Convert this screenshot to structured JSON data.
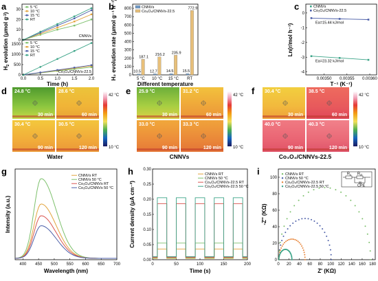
{
  "panels": {
    "a": {
      "label": "a",
      "xlabel": "Time (h)",
      "ylabel": "H",
      "ylabel_sub": "2",
      "ylabel_rest": " evolution (μmol g",
      "ylabel_sup": "-1",
      "ylabel_end": ")",
      "xticks": [
        "0.0",
        "0.5",
        "1.0",
        "1.5",
        "2.0"
      ],
      "top": {
        "name": "CNNVs",
        "yticks": [
          "0",
          "10",
          "20",
          "30"
        ],
        "ylim": [
          0,
          35
        ],
        "series": [
          {
            "name": "5 °C",
            "color": "#7cc06b",
            "x": [
              0,
              0.5,
              1.0,
              1.5,
              2.0
            ],
            "y": [
              0,
              5,
              10,
              14,
              20
            ]
          },
          {
            "name": "10 °C",
            "color": "#e2a33c",
            "x": [
              0,
              0.5,
              1.0,
              1.5,
              2.0
            ],
            "y": [
              0,
              6,
              12,
              18,
              25
            ]
          },
          {
            "name": "15 °C",
            "color": "#4b5ea8",
            "x": [
              0,
              0.5,
              1.0,
              1.5,
              2.0
            ],
            "y": [
              0,
              7,
              14,
              21,
              29
            ]
          },
          {
            "name": "RT",
            "color": "#3aa387",
            "x": [
              0,
              0.5,
              1.0,
              1.5,
              2.0
            ],
            "y": [
              0,
              8,
              15.5,
              23,
              31
            ]
          }
        ]
      },
      "bottom": {
        "name": "Co₃O₄/CNNVs-22.5",
        "yticks": [
          "0",
          "500",
          "1000",
          "1500"
        ],
        "ylim": [
          0,
          1700
        ],
        "series": [
          {
            "name": "5 °C",
            "color": "#7cc06b",
            "x": [
              0,
              0.5,
              1.0,
              1.5,
              2.0
            ],
            "y": [
              0,
              95,
              190,
              285,
              375
            ]
          },
          {
            "name": "10 °C",
            "color": "#e2a33c",
            "x": [
              0,
              0.5,
              1.0,
              1.5,
              2.0
            ],
            "y": [
              0,
              108,
              216,
              325,
              432
            ]
          },
          {
            "name": "15 °C",
            "color": "#4b5ea8",
            "x": [
              0,
              0.5,
              1.0,
              1.5,
              2.0
            ],
            "y": [
              0,
              118,
              236,
              354,
              472
            ]
          },
          {
            "name": "RT",
            "color": "#3aa387",
            "x": [
              0,
              0.5,
              1.0,
              1.5,
              2.0
            ],
            "y": [
              0,
              386,
              773,
              1160,
              1546
            ]
          }
        ]
      }
    },
    "b": {
      "label": "b",
      "xlabel": "Different temperature",
      "ylabel": "H₂ evolution rate (μmol g⁻¹ h⁻¹)",
      "categories": [
        "5 °C",
        "10 °C",
        "15 °C",
        "RT"
      ],
      "yticks": [
        "0",
        "100",
        "200",
        "300",
        "400",
        "500",
        "600",
        "700",
        "800"
      ],
      "ylim": [
        0,
        850
      ],
      "series": [
        {
          "name": "CNNVs",
          "color": "#6f9ac7",
          "values": [
            10.5,
            12.7,
            14.5,
            15.5
          ]
        },
        {
          "name": "Co₃O₄/CNNVs-22.5",
          "color": "#e8c07a",
          "values": [
            187.1,
            216.2,
            235.9,
            772.9
          ]
        }
      ],
      "value_labels": [
        [
          "10.5",
          "187.1"
        ],
        [
          "12.7",
          "216.2"
        ],
        [
          "14.5",
          "235.9"
        ],
        [
          "15.5",
          "772.9"
        ]
      ]
    },
    "c": {
      "label": "c",
      "xlabel": "T⁻¹ (K⁻¹)",
      "ylabel": "Ln(r/mol h⁻¹)",
      "xticks": [
        "0.00350",
        "0.00355",
        "0.00360"
      ],
      "xtick_values": [
        0.0035,
        0.00355,
        0.0036
      ],
      "xlim": [
        0.00346,
        0.003615
      ],
      "yticks": [
        "0",
        "-1",
        "-2",
        "-3",
        "-4"
      ],
      "ylim": [
        -4.2,
        0.6
      ],
      "series": [
        {
          "name": "CNNVs",
          "color": "#3aa387",
          "x": [
            0.003472,
            0.003534,
            0.003597
          ],
          "y": [
            -2.93,
            -3.05,
            -3.18
          ],
          "annotation": "Ea=23.32 kJ/mol"
        },
        {
          "name": "Co₃O₄/CNNVs-22.5",
          "color": "#4b5ea8",
          "x": [
            0.003472,
            0.003534,
            0.003597
          ],
          "y": [
            -0.35,
            -0.4,
            -0.45
          ],
          "annotation": "Ea=15.44 kJ/mol"
        }
      ]
    },
    "thermal": {
      "scale_max": "42 °C",
      "scale_min": "10 °C",
      "groups": [
        {
          "label": "d",
          "condition": "Water",
          "cells": [
            {
              "temp": "24.8 °C",
              "time": "30 min",
              "colors": [
                "#4f9a2e",
                "#8cc63f",
                "#c5d646"
              ]
            },
            {
              "temp": "28.6 °C",
              "time": "60 min",
              "colors": [
                "#ecc43a",
                "#f0b437",
                "#e8a436"
              ]
            },
            {
              "temp": "30.4 °C",
              "time": "90 min",
              "colors": [
                "#f3c83c",
                "#f2ae3a",
                "#eb9a38"
              ]
            },
            {
              "temp": "30.5 °C",
              "time": "120 min",
              "colors": [
                "#f3c43d",
                "#f1aa3a",
                "#ea9838"
              ]
            }
          ]
        },
        {
          "label": "e",
          "condition": "CNNVs",
          "cells": [
            {
              "temp": "25.9 °C",
              "time": "30 min",
              "colors": [
                "#6cae3a",
                "#a9cf42",
                "#d9cf45"
              ]
            },
            {
              "temp": "31.2 °C",
              "time": "60 min",
              "colors": [
                "#f2c23c",
                "#efa63a",
                "#ea9538"
              ]
            },
            {
              "temp": "33.0 °C",
              "time": "90 min",
              "colors": [
                "#f1a83b",
                "#ec8d3a",
                "#e57837"
              ]
            },
            {
              "temp": "33.3 °C",
              "time": "120 min",
              "colors": [
                "#f0a33b",
                "#ea8839",
                "#e37437"
              ]
            }
          ]
        },
        {
          "label": "f",
          "condition": "Co₃O₄/CNNVs-22.5",
          "cells": [
            {
              "temp": "30.4 °C",
              "time": "30 min",
              "colors": [
                "#f2cf3f",
                "#f2b93d",
                "#eea03b"
              ]
            },
            {
              "temp": "38.5 °C",
              "time": "60 min",
              "colors": [
                "#ee6b5e",
                "#e85a5c",
                "#e0475a"
              ]
            },
            {
              "temp": "40.0 °C",
              "time": "90 min",
              "colors": [
                "#f07a82",
                "#ea6574",
                "#e05266"
              ]
            },
            {
              "temp": "40.3 °C",
              "time": "120 min",
              "colors": [
                "#f1818a",
                "#ea6a78",
                "#df546a"
              ]
            }
          ]
        }
      ]
    },
    "g": {
      "label": "g",
      "xlabel": "Wavelength (nm)",
      "ylabel": "Intensity (a.u.)",
      "xticks": [
        "400",
        "450",
        "500",
        "550",
        "600",
        "650",
        "700"
      ],
      "xlim": [
        375,
        700
      ],
      "series": [
        {
          "name": "CNNVs RT",
          "color": "#e2a33c",
          "peak": 0.6
        },
        {
          "name": "CNNVs 50 °C",
          "color": "#7cc06b",
          "peak": 0.88
        },
        {
          "name": "Co₃O₄/CNNVs RT",
          "color": "#d9534f",
          "peak": 0.47
        },
        {
          "name": "Co₃O₄/CNNVs 50 °C",
          "color": "#4b5ea8",
          "peak": 0.36
        }
      ]
    },
    "h": {
      "label": "h",
      "xlabel": "Time (s)",
      "ylabel": "Current density (μA cm⁻²)",
      "xticks": [
        "0",
        "50",
        "100",
        "150",
        "200"
      ],
      "xlim": [
        0,
        200
      ],
      "yticks": [
        "0.00",
        "0.05",
        "0.10",
        "0.15",
        "0.20",
        "0.25",
        "0.30"
      ],
      "ylim": [
        0,
        0.3
      ],
      "series": [
        {
          "name": "CNNVs RT",
          "color": "#e2a33c",
          "on": 0.035
        },
        {
          "name": "CNNVs 50 °C",
          "color": "#7cc06b",
          "on": 0.055
        },
        {
          "name": "Co₃O₄/CNNVs-22.5 RT",
          "color": "#d9534f",
          "on": 0.185
        },
        {
          "name": "Co₃O₄/CNNVs-22.5 50 °C",
          "color": "#3aa387",
          "on": 0.205
        }
      ]
    },
    "i": {
      "label": "i",
      "xlabel": "Z' (KΩ)",
      "ylabel": "-Z'' (KΩ)",
      "xticks": [
        "0",
        "20",
        "40",
        "60",
        "80",
        "100",
        "120",
        "140",
        "160",
        "180"
      ],
      "xlim": [
        0,
        185
      ],
      "yticks": [
        "0",
        "20",
        "40",
        "60",
        "80",
        "100"
      ],
      "ylim": [
        0,
        110
      ],
      "circuit": {
        "r1": "R",
        "r1_sub": "s",
        "r2": "R",
        "r2_sub": "ct",
        "cpe": "CPE"
      },
      "series": [
        {
          "name": "CNNVs RT",
          "color": "#7cc06b",
          "diameter": 175
        },
        {
          "name": "CNNVs 50 °C",
          "color": "#4b5ea8",
          "diameter": 100
        },
        {
          "name": "Co₃O₄/CNNVs-22.5 RT",
          "color": "#e8853a",
          "diameter": 50
        },
        {
          "name": "Co₃O₄/CNNVs-22.5 50 °C",
          "color": "#3aa387",
          "diameter": 25
        }
      ]
    }
  }
}
